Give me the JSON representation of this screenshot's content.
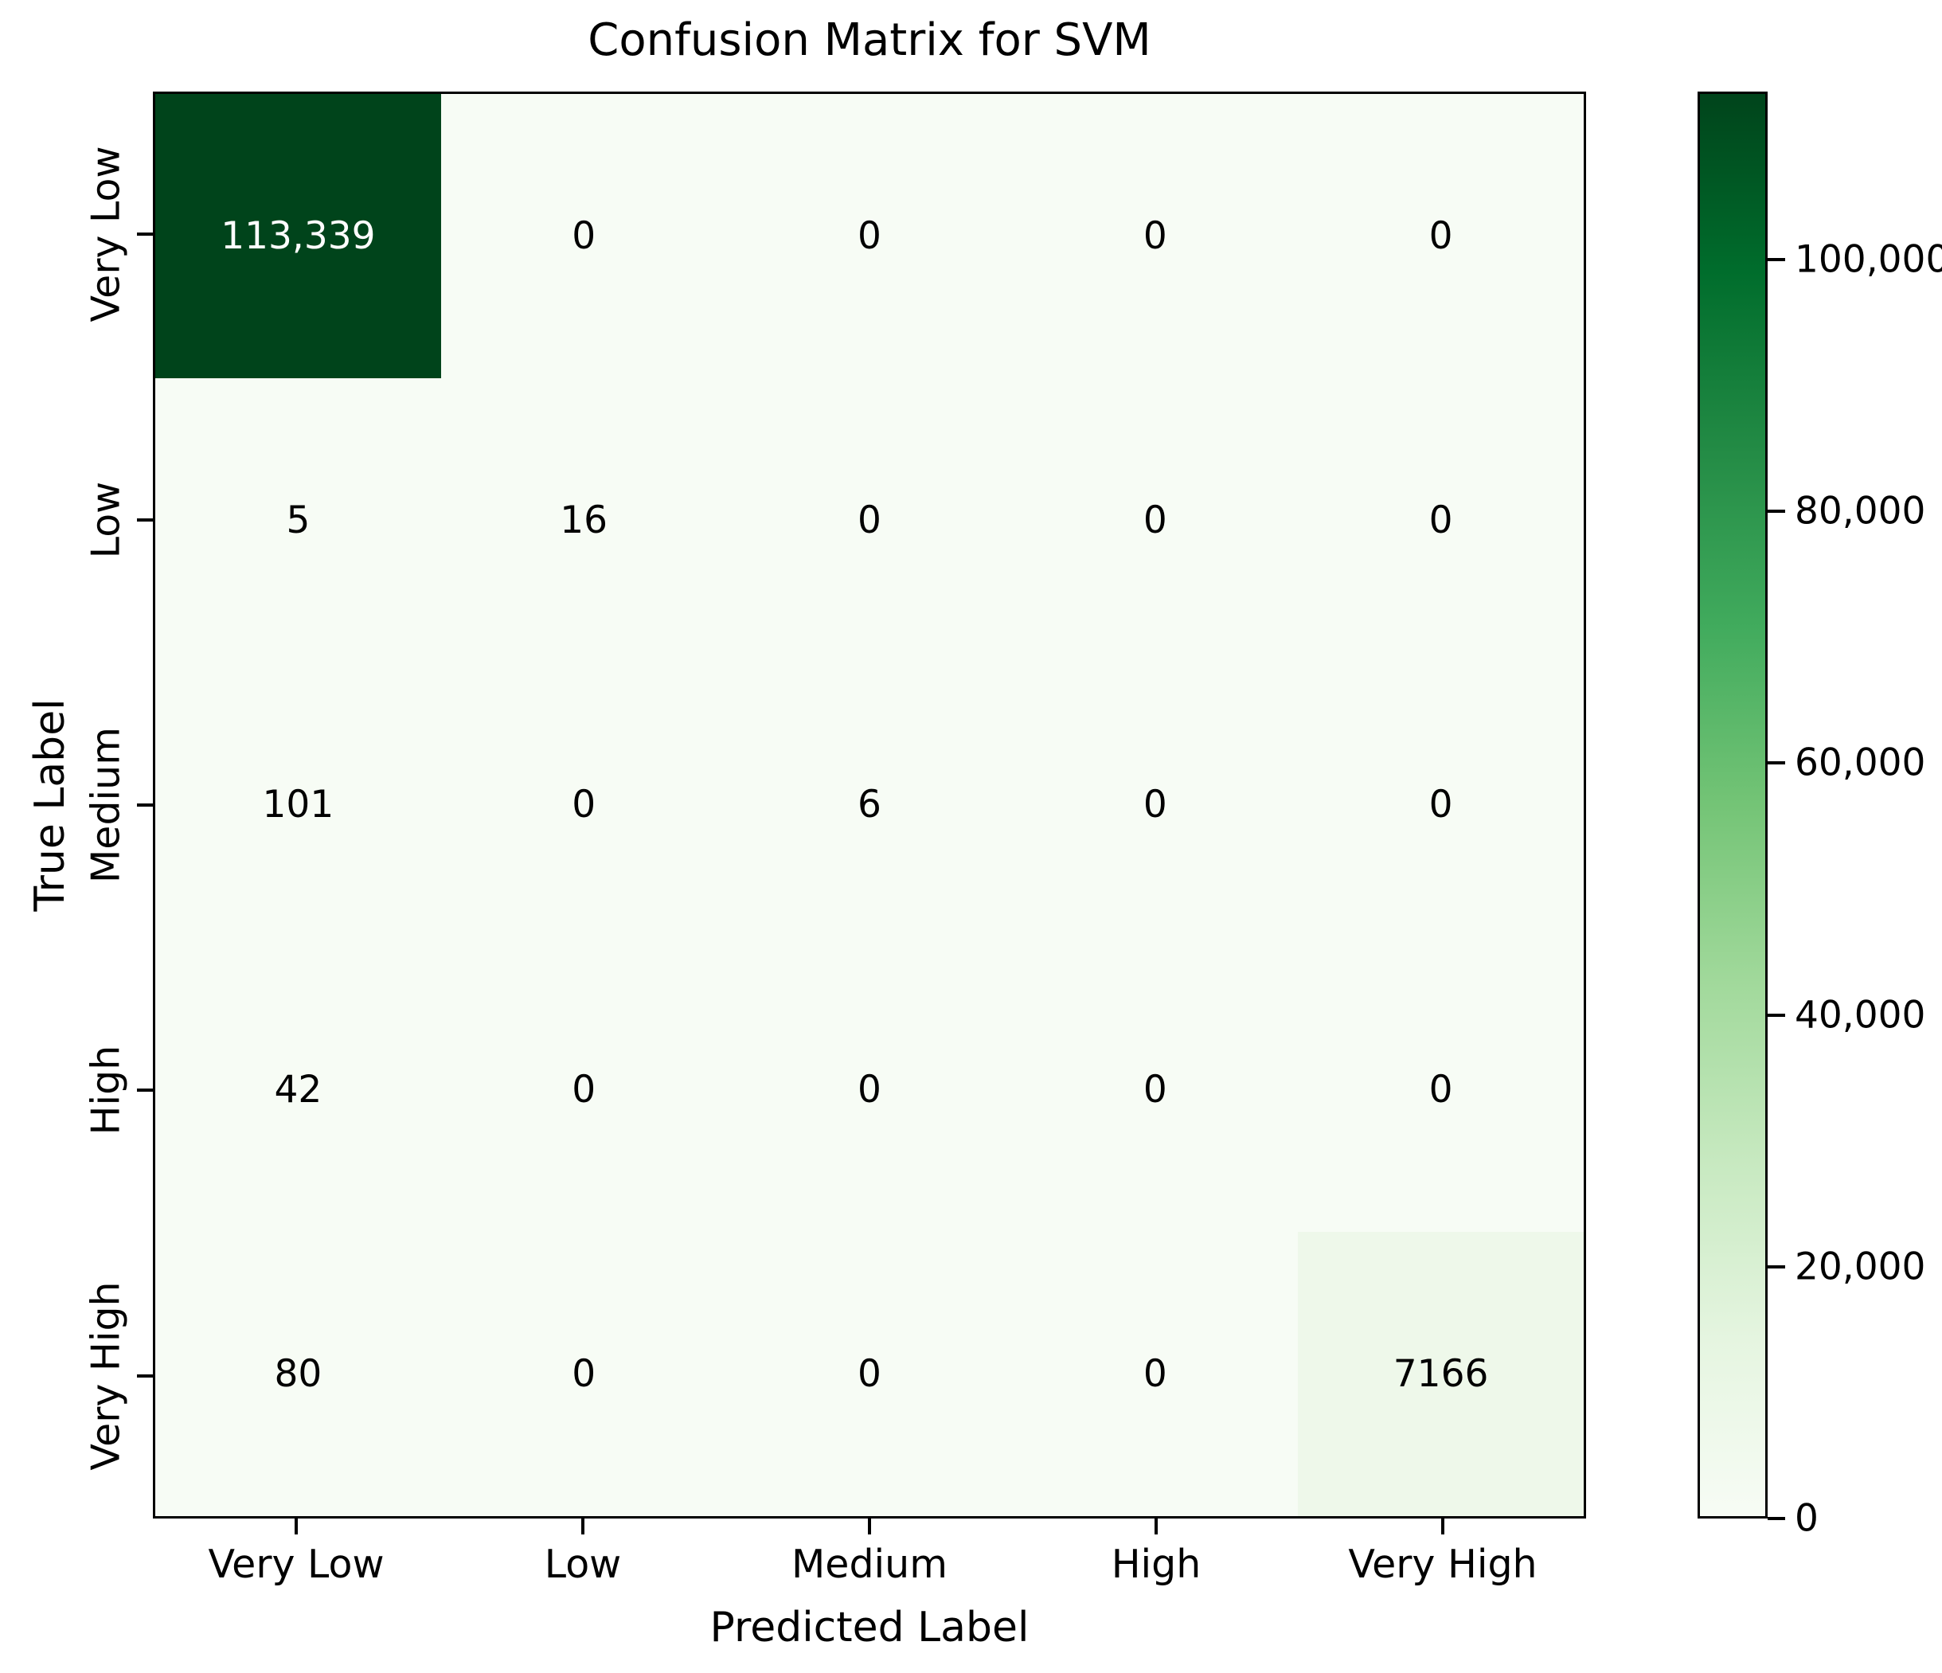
{
  "figure": {
    "background": "#ffffff"
  },
  "chart_data": {
    "type": "heatmap",
    "title": "Confusion Matrix for SVM",
    "xlabel": "Predicted Label",
    "ylabel": "True Label",
    "categories": [
      "Very Low",
      "Low",
      "Medium",
      "High",
      "Very High"
    ],
    "y_categories": [
      "Very Low",
      "Low",
      "Medium",
      "High",
      "Very High"
    ],
    "rows": [
      [
        113339,
        0,
        0,
        0,
        0
      ],
      [
        5,
        16,
        0,
        0,
        0
      ],
      [
        101,
        0,
        6,
        0,
        0
      ],
      [
        42,
        0,
        0,
        0,
        0
      ],
      [
        80,
        0,
        0,
        0,
        7166
      ]
    ],
    "cell_labels": [
      [
        "113,339",
        "0",
        "0",
        "0",
        "0"
      ],
      [
        "5",
        "16",
        "0",
        "0",
        "0"
      ],
      [
        "101",
        "0",
        "6",
        "0",
        "0"
      ],
      [
        "42",
        "0",
        "0",
        "0",
        "0"
      ],
      [
        "80",
        "0",
        "0",
        "0",
        "7166"
      ]
    ],
    "vmin": 0,
    "vmax": 113339,
    "colormap": "Greens",
    "grid": false,
    "colorbar": {
      "position": "right",
      "ticks": [
        {
          "value": 100000,
          "label": "100,000"
        },
        {
          "value": 80000,
          "label": "80,000"
        },
        {
          "value": 60000,
          "label": "60,000"
        },
        {
          "value": 40000,
          "label": "40,000"
        },
        {
          "value": 20000,
          "label": "20,000"
        },
        {
          "value": 0,
          "label": "0"
        }
      ]
    }
  },
  "colors": {
    "colormap_stops": [
      "#f7fcf5",
      "#e5f5e0",
      "#c7e9c0",
      "#a1d99b",
      "#74c476",
      "#41ab5d",
      "#238b45",
      "#006d2c",
      "#00441b"
    ],
    "cell_text_on_dark": "#ffffff",
    "cell_text_on_light": "#000000",
    "spine": "#000000",
    "figure_bg": "#ffffff"
  }
}
